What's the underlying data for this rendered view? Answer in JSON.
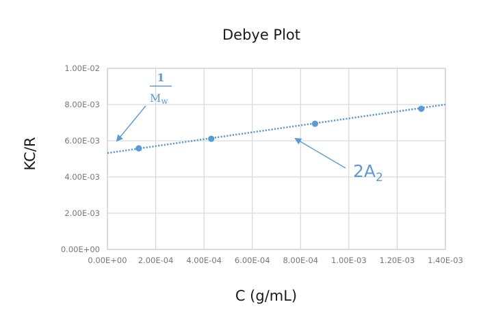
{
  "chart_data": {
    "type": "scatter",
    "title": "Debye Plot",
    "xlabel": "C (g/mL)",
    "ylabel": "KC/R",
    "xlim": [
      0,
      0.0014
    ],
    "ylim": [
      0,
      0.01
    ],
    "grid": true,
    "legend": "none",
    "x_ticks": [
      "0.00E+00",
      "2.00E-04",
      "4.00E-04",
      "6.00E-04",
      "8.00E-04",
      "1.00E-03",
      "1.20E-03",
      "1.40E-03"
    ],
    "y_ticks": [
      "0.00E+00",
      "2.00E-03",
      "4.00E-03",
      "6.00E-03",
      "8.00E-03",
      "1.00E-02"
    ],
    "series": [
      {
        "name": "KC/R",
        "x": [
          0.00013,
          0.00043,
          0.00086,
          0.0013
        ],
        "y": [
          0.00558,
          0.00611,
          0.00694,
          0.00777
        ],
        "color": "#5b9bd5"
      }
    ],
    "trendline": {
      "type": "linear",
      "style": "dotted",
      "color": "#5b9bd5",
      "x_start": 0,
      "y_start": 0.00532,
      "x_end": 0.0014,
      "y_end": 0.008
    },
    "annotations": [
      {
        "label": "1/M_w",
        "numerator": "1",
        "denominator": "M",
        "subscript": "w",
        "points_to": "y-intercept"
      },
      {
        "label": "2A_2",
        "main": "2A",
        "subscript": "2",
        "points_to": "slope"
      }
    ]
  }
}
